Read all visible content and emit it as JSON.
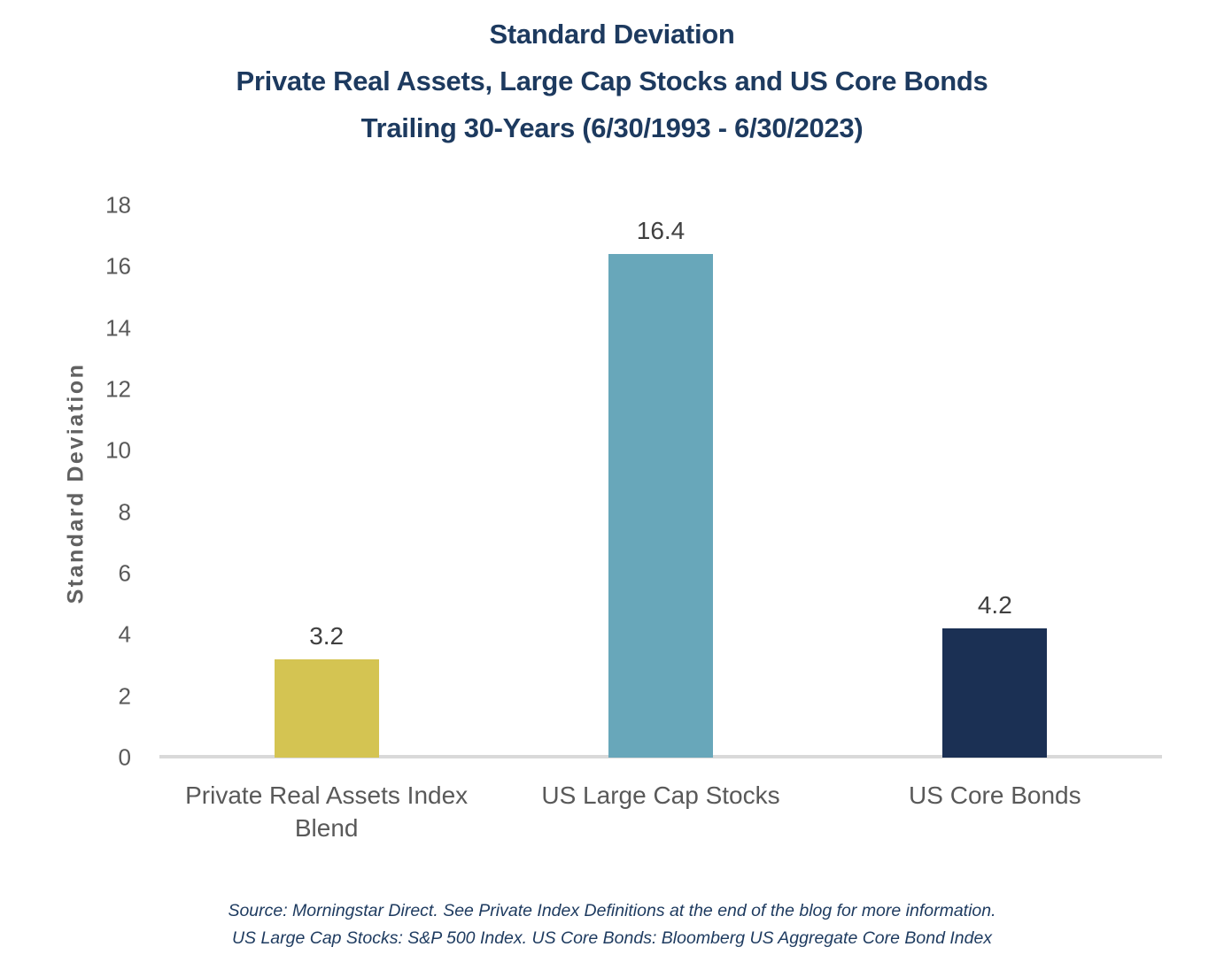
{
  "title": {
    "line1": "Standard Deviation",
    "line2": "Private Real Assets, Large Cap Stocks and US Core Bonds",
    "line3": "Trailing 30-Years (6/30/1993 - 6/30/2023)"
  },
  "footer": {
    "line1": "Source: Morningstar Direct. See Private Index Definitions at the end of the blog for more information.",
    "line2": "US Large Cap Stocks: S&P 500 Index. US Core Bonds: Bloomberg US Aggregate Core Bond Index"
  },
  "colors": {
    "title_navy": "#1d3a5f",
    "axis_text_gray": "#595959",
    "value_text_gray": "#404040",
    "baseline_gray": "#d9d9d9"
  },
  "chart_data": {
    "type": "bar",
    "title": "Standard Deviation",
    "subtitle": "Private Real Assets, Large Cap Stocks and US Core Bonds — Trailing 30-Years (6/30/1993 - 6/30/2023)",
    "categories": [
      "Private Real Assets Index Blend",
      "US Large Cap Stocks",
      "US Core Bonds"
    ],
    "values": [
      3.2,
      16.4,
      4.2
    ],
    "data_labels": [
      "3.2",
      "16.4",
      "4.2"
    ],
    "bar_colors": [
      "#d4c452",
      "#68a7ba",
      "#1b3054"
    ],
    "xlabel": "",
    "ylabel": "Standard Deviation",
    "ylim": [
      0,
      18
    ],
    "yticks": [
      0,
      2,
      4,
      6,
      8,
      10,
      12,
      14,
      16,
      18
    ],
    "grid": false,
    "legend": "none"
  }
}
